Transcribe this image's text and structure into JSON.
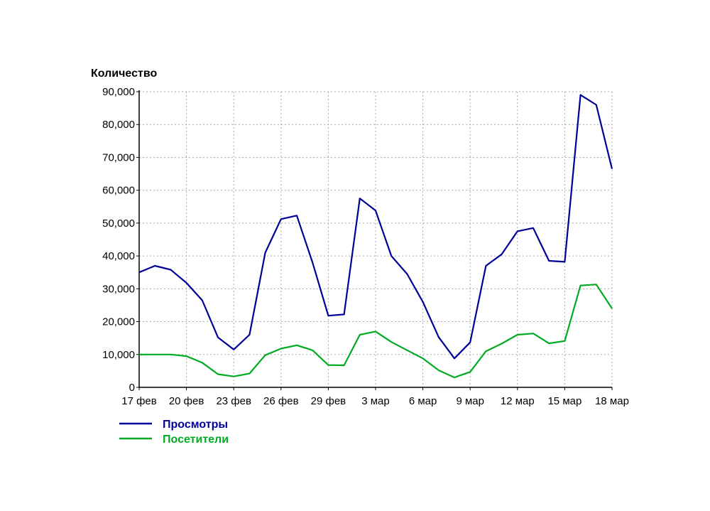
{
  "chart_data": {
    "type": "line",
    "ylabel": "Количество",
    "ylim": [
      0,
      90000
    ],
    "yticks": [
      0,
      10000,
      20000,
      30000,
      40000,
      50000,
      60000,
      70000,
      80000,
      90000
    ],
    "ytick_labels": [
      "0",
      "10,000",
      "20,000",
      "30,000",
      "40,000",
      "50,000",
      "60,000",
      "70,000",
      "80,000",
      "90,000"
    ],
    "x_dates": [
      "17 фев",
      "18 фев",
      "19 фев",
      "20 фев",
      "21 фев",
      "22 фев",
      "23 фев",
      "24 фев",
      "25 фев",
      "26 фев",
      "27 фев",
      "28 фев",
      "29 фев",
      "1 мар",
      "2 мар",
      "3 мар",
      "4 мар",
      "5 мар",
      "6 мар",
      "7 мар",
      "8 мар",
      "9 мар",
      "10 мар",
      "11 мар",
      "12 мар",
      "13 мар",
      "14 мар",
      "15 мар",
      "16 мар",
      "17 мар",
      "18 мар"
    ],
    "xtick_labels": [
      "17 фев",
      "20 фев",
      "23 фев",
      "26 фев",
      "29 фев",
      "3 мар",
      "6 мар",
      "9 мар",
      "12 мар",
      "15 мар",
      "18 мар"
    ],
    "grid": true,
    "legend_position": "bottom-left",
    "series": [
      {
        "name": "Просмотры",
        "color": "#000099",
        "values": [
          35000,
          37000,
          35800,
          31800,
          26500,
          15200,
          11500,
          16000,
          41000,
          51200,
          52300,
          38000,
          21800,
          22200,
          57500,
          53800,
          40000,
          34500,
          26000,
          15300,
          8800,
          13700,
          37000,
          40500,
          47500,
          48500,
          38500,
          38200,
          89000,
          86000,
          66500
        ]
      },
      {
        "name": "Посетители",
        "color": "#00aa22",
        "values": [
          10000,
          10000,
          10000,
          9500,
          7500,
          4000,
          3300,
          4200,
          9800,
          11800,
          12800,
          11300,
          6800,
          6700,
          16000,
          17000,
          13800,
          11300,
          8800,
          5200,
          3000,
          4700,
          11000,
          13300,
          16000,
          16400,
          13400,
          14100,
          31000,
          31300,
          24000
        ]
      }
    ]
  }
}
